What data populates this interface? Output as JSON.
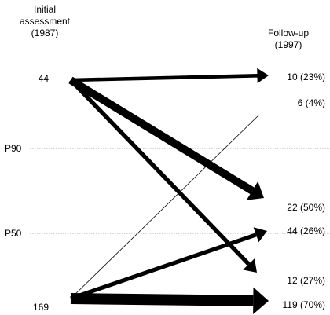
{
  "header": {
    "initial_lines": [
      "Initial",
      "assessment",
      "(1987)"
    ],
    "followup_lines": [
      "Follow-up",
      "(1997)"
    ]
  },
  "groups": {
    "initial": [
      {
        "key": "top",
        "label": "44"
      },
      {
        "key": "bottom",
        "label": "169"
      }
    ],
    "followup": [
      {
        "key": "a",
        "label": "10 (23%)"
      },
      {
        "key": "b",
        "label": "6 (4%)"
      },
      {
        "key": "c",
        "label": "22 (50%)"
      },
      {
        "key": "d",
        "label": "44 (26%)"
      },
      {
        "key": "e",
        "label": "12 (27%)"
      },
      {
        "key": "f",
        "label": "119 (70%)"
      }
    ]
  },
  "reference_lines": [
    {
      "key": "p90",
      "label": "P90"
    },
    {
      "key": "p50",
      "label": "P50"
    }
  ],
  "flows": [
    {
      "from": "top",
      "to": "a",
      "value": 10,
      "percent": 23
    },
    {
      "from": "top",
      "to": "c",
      "value": 22,
      "percent": 50
    },
    {
      "from": "top",
      "to": "e",
      "value": 12,
      "percent": 27
    },
    {
      "from": "bottom",
      "to": "b",
      "value": 6,
      "percent": 4
    },
    {
      "from": "bottom",
      "to": "d",
      "value": 44,
      "percent": 26
    },
    {
      "from": "bottom",
      "to": "f",
      "value": 119,
      "percent": 70
    }
  ],
  "colors": {
    "ink": "#000000",
    "reference": "#555555"
  }
}
